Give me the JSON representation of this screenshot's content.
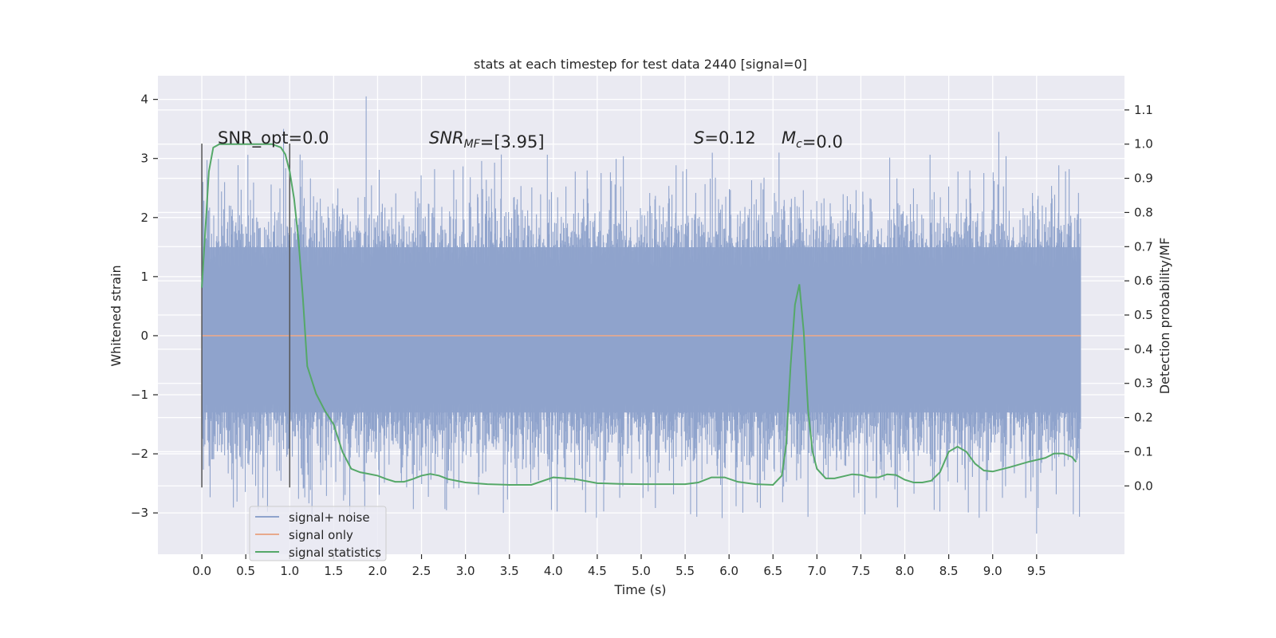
{
  "chart_data": {
    "type": "line",
    "title": "stats at each timestep for test data 2440 [signal=0]",
    "xlabel": "Time (s)",
    "ylabel": "Whitened strain",
    "ylabel_right": "Detection probability/MF",
    "xlim": [
      -0.5,
      10.5
    ],
    "ylim": [
      -3.7,
      4.4
    ],
    "ylim_right": [
      -0.2,
      1.2
    ],
    "x_ticks": [
      "0.0",
      "0.5",
      "1.0",
      "1.5",
      "2.0",
      "2.5",
      "3.0",
      "3.5",
      "4.0",
      "4.5",
      "5.0",
      "5.5",
      "6.0",
      "6.5",
      "7.0",
      "7.5",
      "8.0",
      "8.5",
      "9.0",
      "9.5"
    ],
    "y_ticks": [
      "−3",
      "−2",
      "−1",
      "0",
      "1",
      "2",
      "3",
      "4"
    ],
    "y_ticks_right": [
      "0.0",
      "0.1",
      "0.2",
      "0.3",
      "0.4",
      "0.5",
      "0.6",
      "0.7",
      "0.8",
      "0.9",
      "1.0",
      "1.1"
    ],
    "grid": true,
    "legend_position": "lower-left",
    "annotations": [
      {
        "key": "snr_opt",
        "text": "SNR_opt=0.0"
      },
      {
        "key": "snr_mf",
        "text": "SNR_MF=[3.95]"
      },
      {
        "key": "s",
        "text": "S=0.12"
      },
      {
        "key": "mc",
        "text": "M_c=0.0"
      }
    ],
    "vertical_markers_x": [
      0.0,
      1.0
    ],
    "series": [
      {
        "name": "signal+ noise",
        "color": "#8fa3cc",
        "kind": "noise",
        "x_range": [
          0.0,
          10.0
        ],
        "core_band": [
          -1.3,
          1.5
        ],
        "extreme_range": [
          -3.4,
          4.05
        ],
        "peaks": [
          [
            1.87,
            4.05
          ],
          [
            9.07,
            3.45
          ],
          [
            0.93,
            3.5
          ],
          [
            9.5,
            -3.35
          ],
          [
            6.75,
            2.35
          ],
          [
            1.0,
            2.35
          ]
        ]
      },
      {
        "name": "signal only",
        "color": "#e8a98c",
        "x": [
          0.0,
          10.0
        ],
        "y": [
          0.0,
          0.0
        ]
      },
      {
        "name": "signal statistics",
        "color": "#55a868",
        "axis": "right",
        "x": [
          0.0,
          0.08,
          0.13,
          0.2,
          0.3,
          0.5,
          0.7,
          0.8,
          0.9,
          0.95,
          1.0,
          1.05,
          1.1,
          1.15,
          1.2,
          1.3,
          1.4,
          1.5,
          1.6,
          1.7,
          1.8,
          1.9,
          2.0,
          2.1,
          2.2,
          2.3,
          2.4,
          2.5,
          2.6,
          2.7,
          2.8,
          2.9,
          3.0,
          3.25,
          3.5,
          3.75,
          4.0,
          4.25,
          4.5,
          4.75,
          5.0,
          5.25,
          5.5,
          5.65,
          5.8,
          5.95,
          6.1,
          6.3,
          6.5,
          6.6,
          6.65,
          6.7,
          6.75,
          6.8,
          6.85,
          6.9,
          6.95,
          7.0,
          7.1,
          7.2,
          7.3,
          7.4,
          7.5,
          7.6,
          7.7,
          7.8,
          7.9,
          8.0,
          8.1,
          8.2,
          8.3,
          8.4,
          8.5,
          8.6,
          8.7,
          8.8,
          8.9,
          9.0,
          9.2,
          9.4,
          9.6,
          9.7,
          9.8,
          9.9,
          9.95
        ],
        "y": [
          0.58,
          0.92,
          0.99,
          1.0,
          1.0,
          1.0,
          1.0,
          1.0,
          0.99,
          0.97,
          0.92,
          0.84,
          0.72,
          0.55,
          0.35,
          0.27,
          0.22,
          0.18,
          0.1,
          0.05,
          0.04,
          0.035,
          0.03,
          0.02,
          0.012,
          0.012,
          0.02,
          0.03,
          0.035,
          0.03,
          0.02,
          0.015,
          0.01,
          0.005,
          0.003,
          0.003,
          0.025,
          0.02,
          0.008,
          0.006,
          0.005,
          0.005,
          0.005,
          0.01,
          0.025,
          0.025,
          0.012,
          0.005,
          0.003,
          0.03,
          0.12,
          0.35,
          0.53,
          0.59,
          0.45,
          0.22,
          0.1,
          0.05,
          0.022,
          0.022,
          0.028,
          0.034,
          0.032,
          0.025,
          0.025,
          0.034,
          0.032,
          0.018,
          0.01,
          0.01,
          0.015,
          0.04,
          0.1,
          0.115,
          0.1,
          0.065,
          0.045,
          0.042,
          0.055,
          0.07,
          0.082,
          0.095,
          0.095,
          0.085,
          0.07
        ]
      }
    ]
  }
}
